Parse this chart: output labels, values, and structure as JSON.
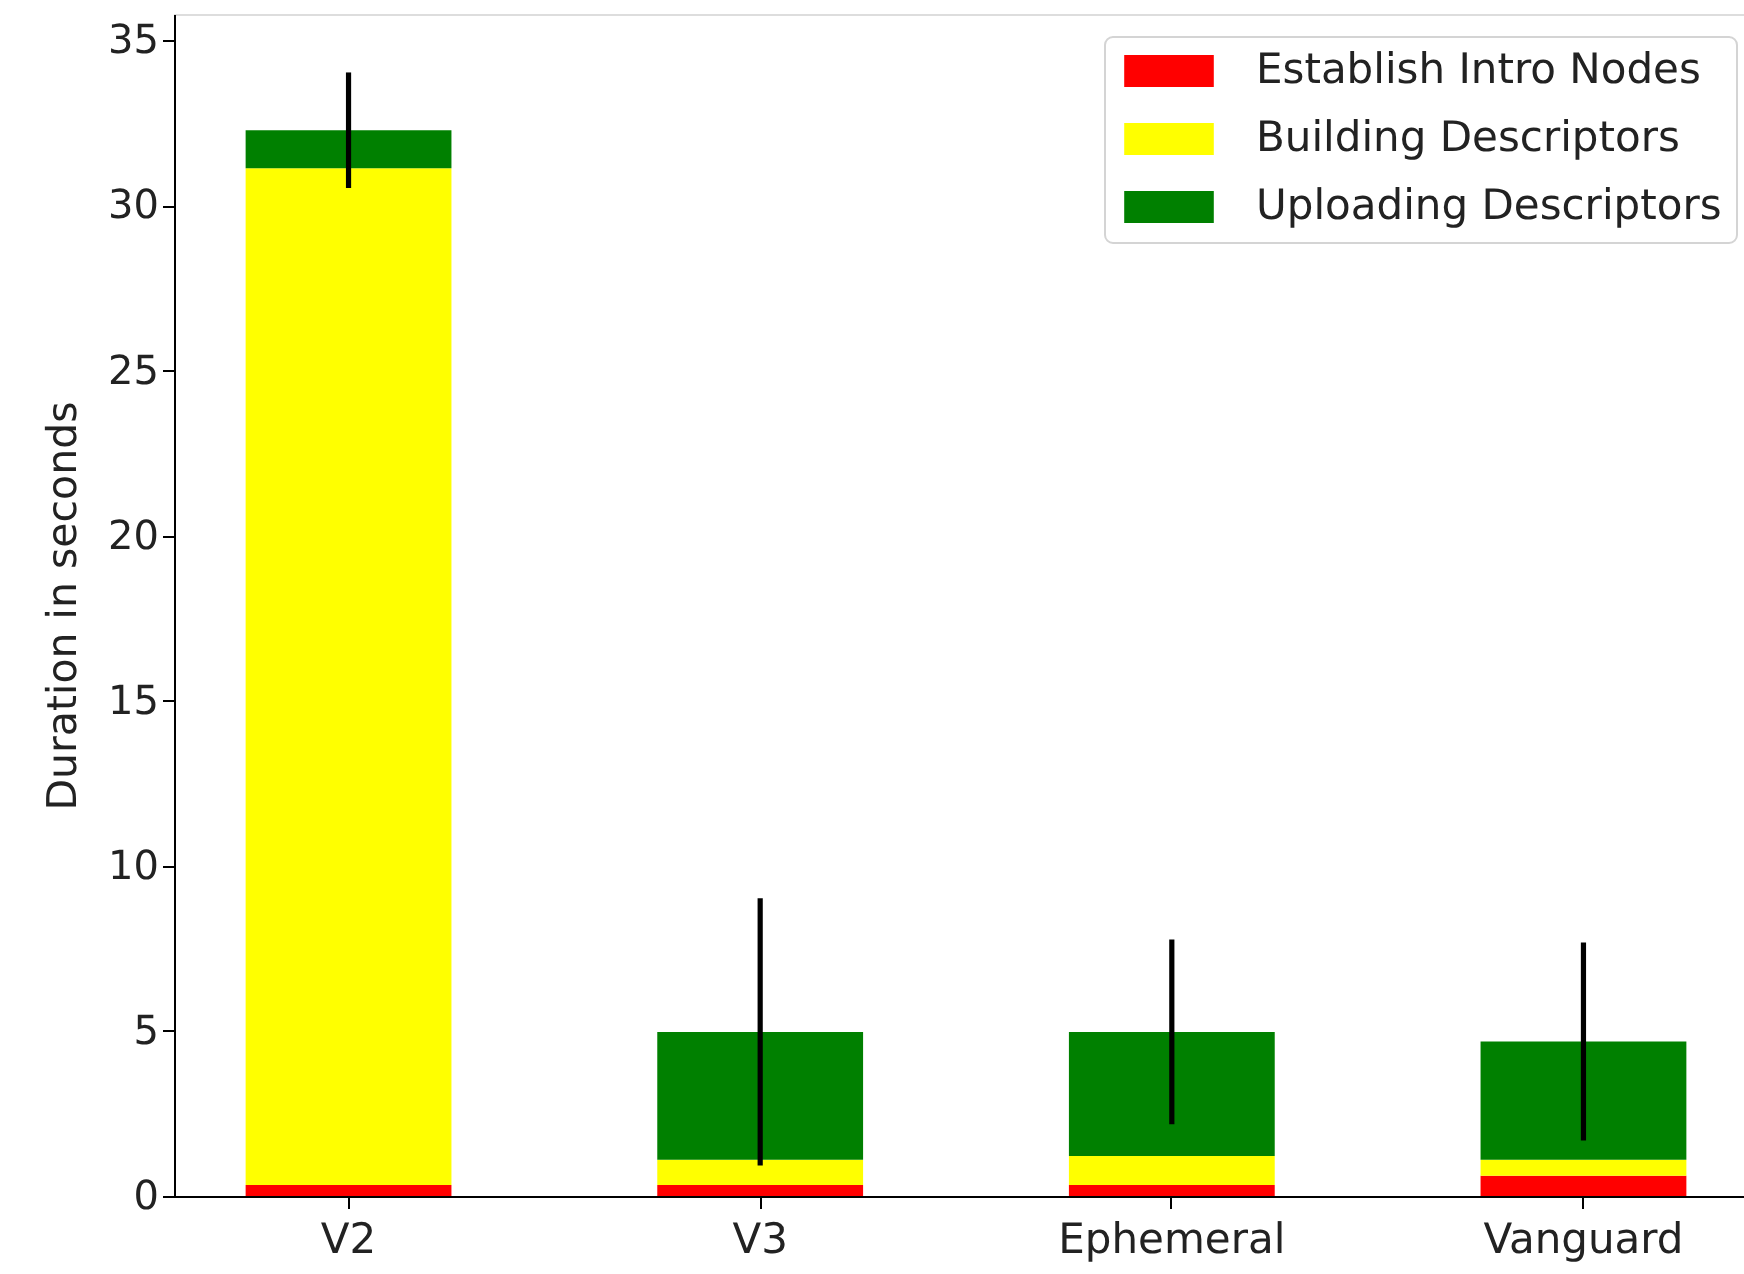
{
  "chart_data": {
    "type": "bar",
    "stacked": true,
    "ylabel": "Duration in seconds",
    "categories": [
      "V2",
      "V3",
      "Ephemeral",
      "Vanguard"
    ],
    "series": [
      {
        "name": "Establish Intro Nodes",
        "color": "#ff0000",
        "values": [
          0.33,
          0.33,
          0.33,
          0.61
        ]
      },
      {
        "name": "Building Descriptors",
        "color": "#ffff00",
        "values": [
          30.8,
          0.77,
          0.88,
          0.49
        ]
      },
      {
        "name": "Uploading Descriptors",
        "color": "#008000",
        "values": [
          1.15,
          3.87,
          3.76,
          3.58
        ],
        "errors": [
          1.75,
          4.05,
          2.8,
          3.0
        ]
      }
    ],
    "ylim": [
      0,
      35.8
    ],
    "yticks": [
      0,
      5,
      10,
      15,
      20,
      25,
      30,
      35
    ],
    "grid": false,
    "legend": "top right"
  }
}
